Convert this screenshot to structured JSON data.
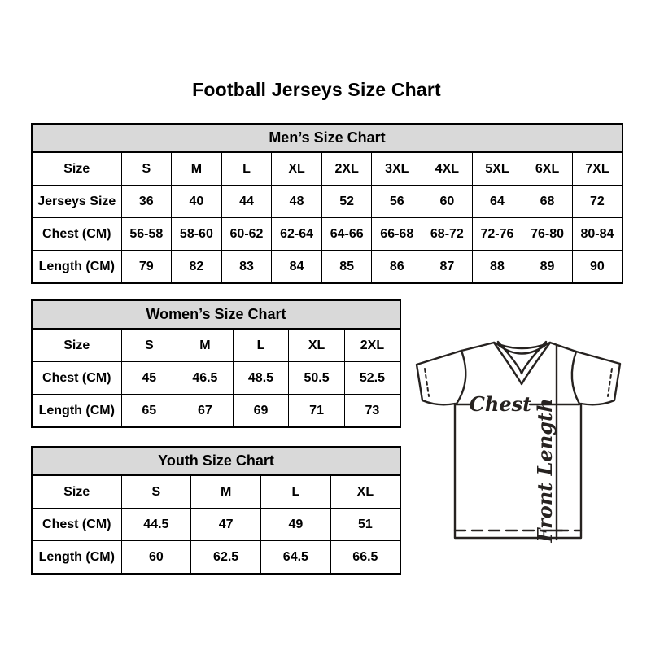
{
  "page": {
    "title": "Football Jerseys Size Chart"
  },
  "tables": [
    {
      "id": "men",
      "title": "Men’s Size Chart",
      "rows": [
        [
          "Size",
          "S",
          "M",
          "L",
          "XL",
          "2XL",
          "3XL",
          "4XL",
          "5XL",
          "6XL",
          "7XL"
        ],
        [
          "Jerseys Size",
          "36",
          "40",
          "44",
          "48",
          "52",
          "56",
          "60",
          "64",
          "68",
          "72"
        ],
        [
          "Chest (CM)",
          "56-58",
          "58-60",
          "60-62",
          "62-64",
          "64-66",
          "66-68",
          "68-72",
          "72-76",
          "76-80",
          "80-84"
        ],
        [
          "Length (CM)",
          "79",
          "82",
          "83",
          "84",
          "85",
          "86",
          "87",
          "88",
          "89",
          "90"
        ]
      ]
    },
    {
      "id": "women",
      "title": "Women’s Size Chart",
      "rows": [
        [
          "Size",
          "S",
          "M",
          "L",
          "XL",
          "2XL"
        ],
        [
          "Chest (CM)",
          "45",
          "46.5",
          "48.5",
          "50.5",
          "52.5"
        ],
        [
          "Length (CM)",
          "65",
          "67",
          "69",
          "71",
          "73"
        ]
      ]
    },
    {
      "id": "youth",
      "title": "Youth Size Chart",
      "rows": [
        [
          "Size",
          "S",
          "M",
          "L",
          "XL"
        ],
        [
          "Chest (CM)",
          "44.5",
          "47",
          "49",
          "51"
        ],
        [
          "Length (CM)",
          "60",
          "62.5",
          "64.5",
          "66.5"
        ]
      ]
    }
  ],
  "diagram": {
    "chest_label": "Chest",
    "front_length_label": "Front Length"
  },
  "colors": {
    "background": "#ffffff",
    "table_header_bg": "#d9d9d9",
    "table_border": "#000000",
    "text": "#000000",
    "diagram_line": "#262220"
  }
}
